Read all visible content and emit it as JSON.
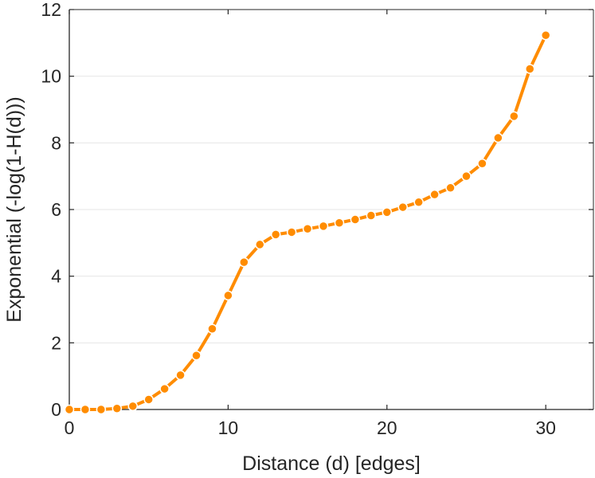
{
  "chart_data": {
    "type": "line",
    "xlabel": "Distance (d) [edges]",
    "ylabel": "Exponential (-log(1-H(d)))",
    "xlim": [
      0,
      33
    ],
    "ylim": [
      0,
      12
    ],
    "xticks": [
      0,
      10,
      20,
      30
    ],
    "yticks": [
      0,
      2,
      4,
      6,
      8,
      10,
      12
    ],
    "grid": "horizontal",
    "line_color": "#ff8c00",
    "marker": "circle",
    "series": [
      {
        "x": [
          0,
          1,
          2,
          3,
          4,
          5,
          6,
          7,
          8,
          9,
          10,
          11,
          12,
          13,
          14,
          15,
          16,
          17,
          18,
          19,
          20,
          21,
          22,
          23,
          24,
          25,
          26,
          27,
          28,
          29,
          30
        ],
        "y": [
          0.0,
          0.0,
          0.0,
          0.03,
          0.1,
          0.3,
          0.62,
          1.03,
          1.62,
          2.42,
          3.42,
          4.42,
          4.95,
          5.25,
          5.32,
          5.42,
          5.5,
          5.6,
          5.7,
          5.82,
          5.92,
          6.07,
          6.22,
          6.45,
          6.65,
          7.0,
          7.38,
          8.15,
          8.8,
          10.22,
          11.23
        ]
      }
    ]
  }
}
